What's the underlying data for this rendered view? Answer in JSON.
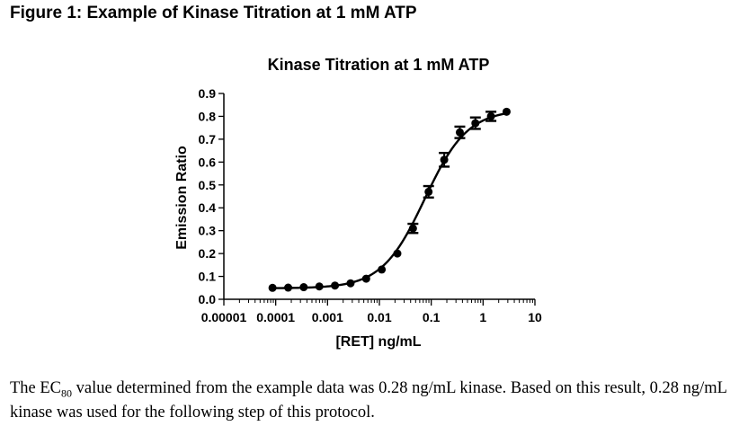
{
  "figure": {
    "title": "Figure 1: Example of Kinase Titration at 1 mM ATP"
  },
  "caption": {
    "part1": "The EC",
    "subscript": "80",
    "part2": " value determined from the example data was 0.28 ng/mL kinase.  Based on this result, 0.28 ng/mL kinase was used for the following step of this protocol."
  },
  "chart_data": {
    "type": "scatter",
    "title": "Kinase Titration at 1 mM ATP",
    "xlabel": "[RET] ng/mL",
    "ylabel": "Emission Ratio",
    "x_scale": "log",
    "xlim": [
      1e-05,
      10
    ],
    "ylim": [
      0,
      0.9
    ],
    "x_tick_labels": [
      "0.00001",
      "0.0001",
      "0.001",
      "0.01",
      "0.1",
      "1",
      "10"
    ],
    "y_tick_labels": [
      "0.0",
      "0.1",
      "0.2",
      "0.3",
      "0.4",
      "0.5",
      "0.6",
      "0.7",
      "0.8",
      "0.9"
    ],
    "points": [
      {
        "x": 8.68e-05,
        "y": 0.05,
        "err": 0
      },
      {
        "x": 0.000174,
        "y": 0.051,
        "err": 0
      },
      {
        "x": 0.000347,
        "y": 0.053,
        "err": 0
      },
      {
        "x": 0.000694,
        "y": 0.056,
        "err": 0
      },
      {
        "x": 0.00139,
        "y": 0.06,
        "err": 0
      },
      {
        "x": 0.00278,
        "y": 0.07,
        "err": 0
      },
      {
        "x": 0.00556,
        "y": 0.09,
        "err": 0
      },
      {
        "x": 0.0111,
        "y": 0.13,
        "err": 0
      },
      {
        "x": 0.0222,
        "y": 0.2,
        "err": 0
      },
      {
        "x": 0.0444,
        "y": 0.31,
        "err": 0.02
      },
      {
        "x": 0.0889,
        "y": 0.47,
        "err": 0.025
      },
      {
        "x": 0.178,
        "y": 0.61,
        "err": 0.03
      },
      {
        "x": 0.356,
        "y": 0.73,
        "err": 0.025
      },
      {
        "x": 0.711,
        "y": 0.77,
        "err": 0.025
      },
      {
        "x": 1.42,
        "y": 0.8,
        "err": 0.02
      },
      {
        "x": 2.84,
        "y": 0.82,
        "err": 0
      }
    ],
    "fit": "sigmoidal dose-response curve",
    "line_color": "#000000",
    "marker_color": "#000000"
  }
}
